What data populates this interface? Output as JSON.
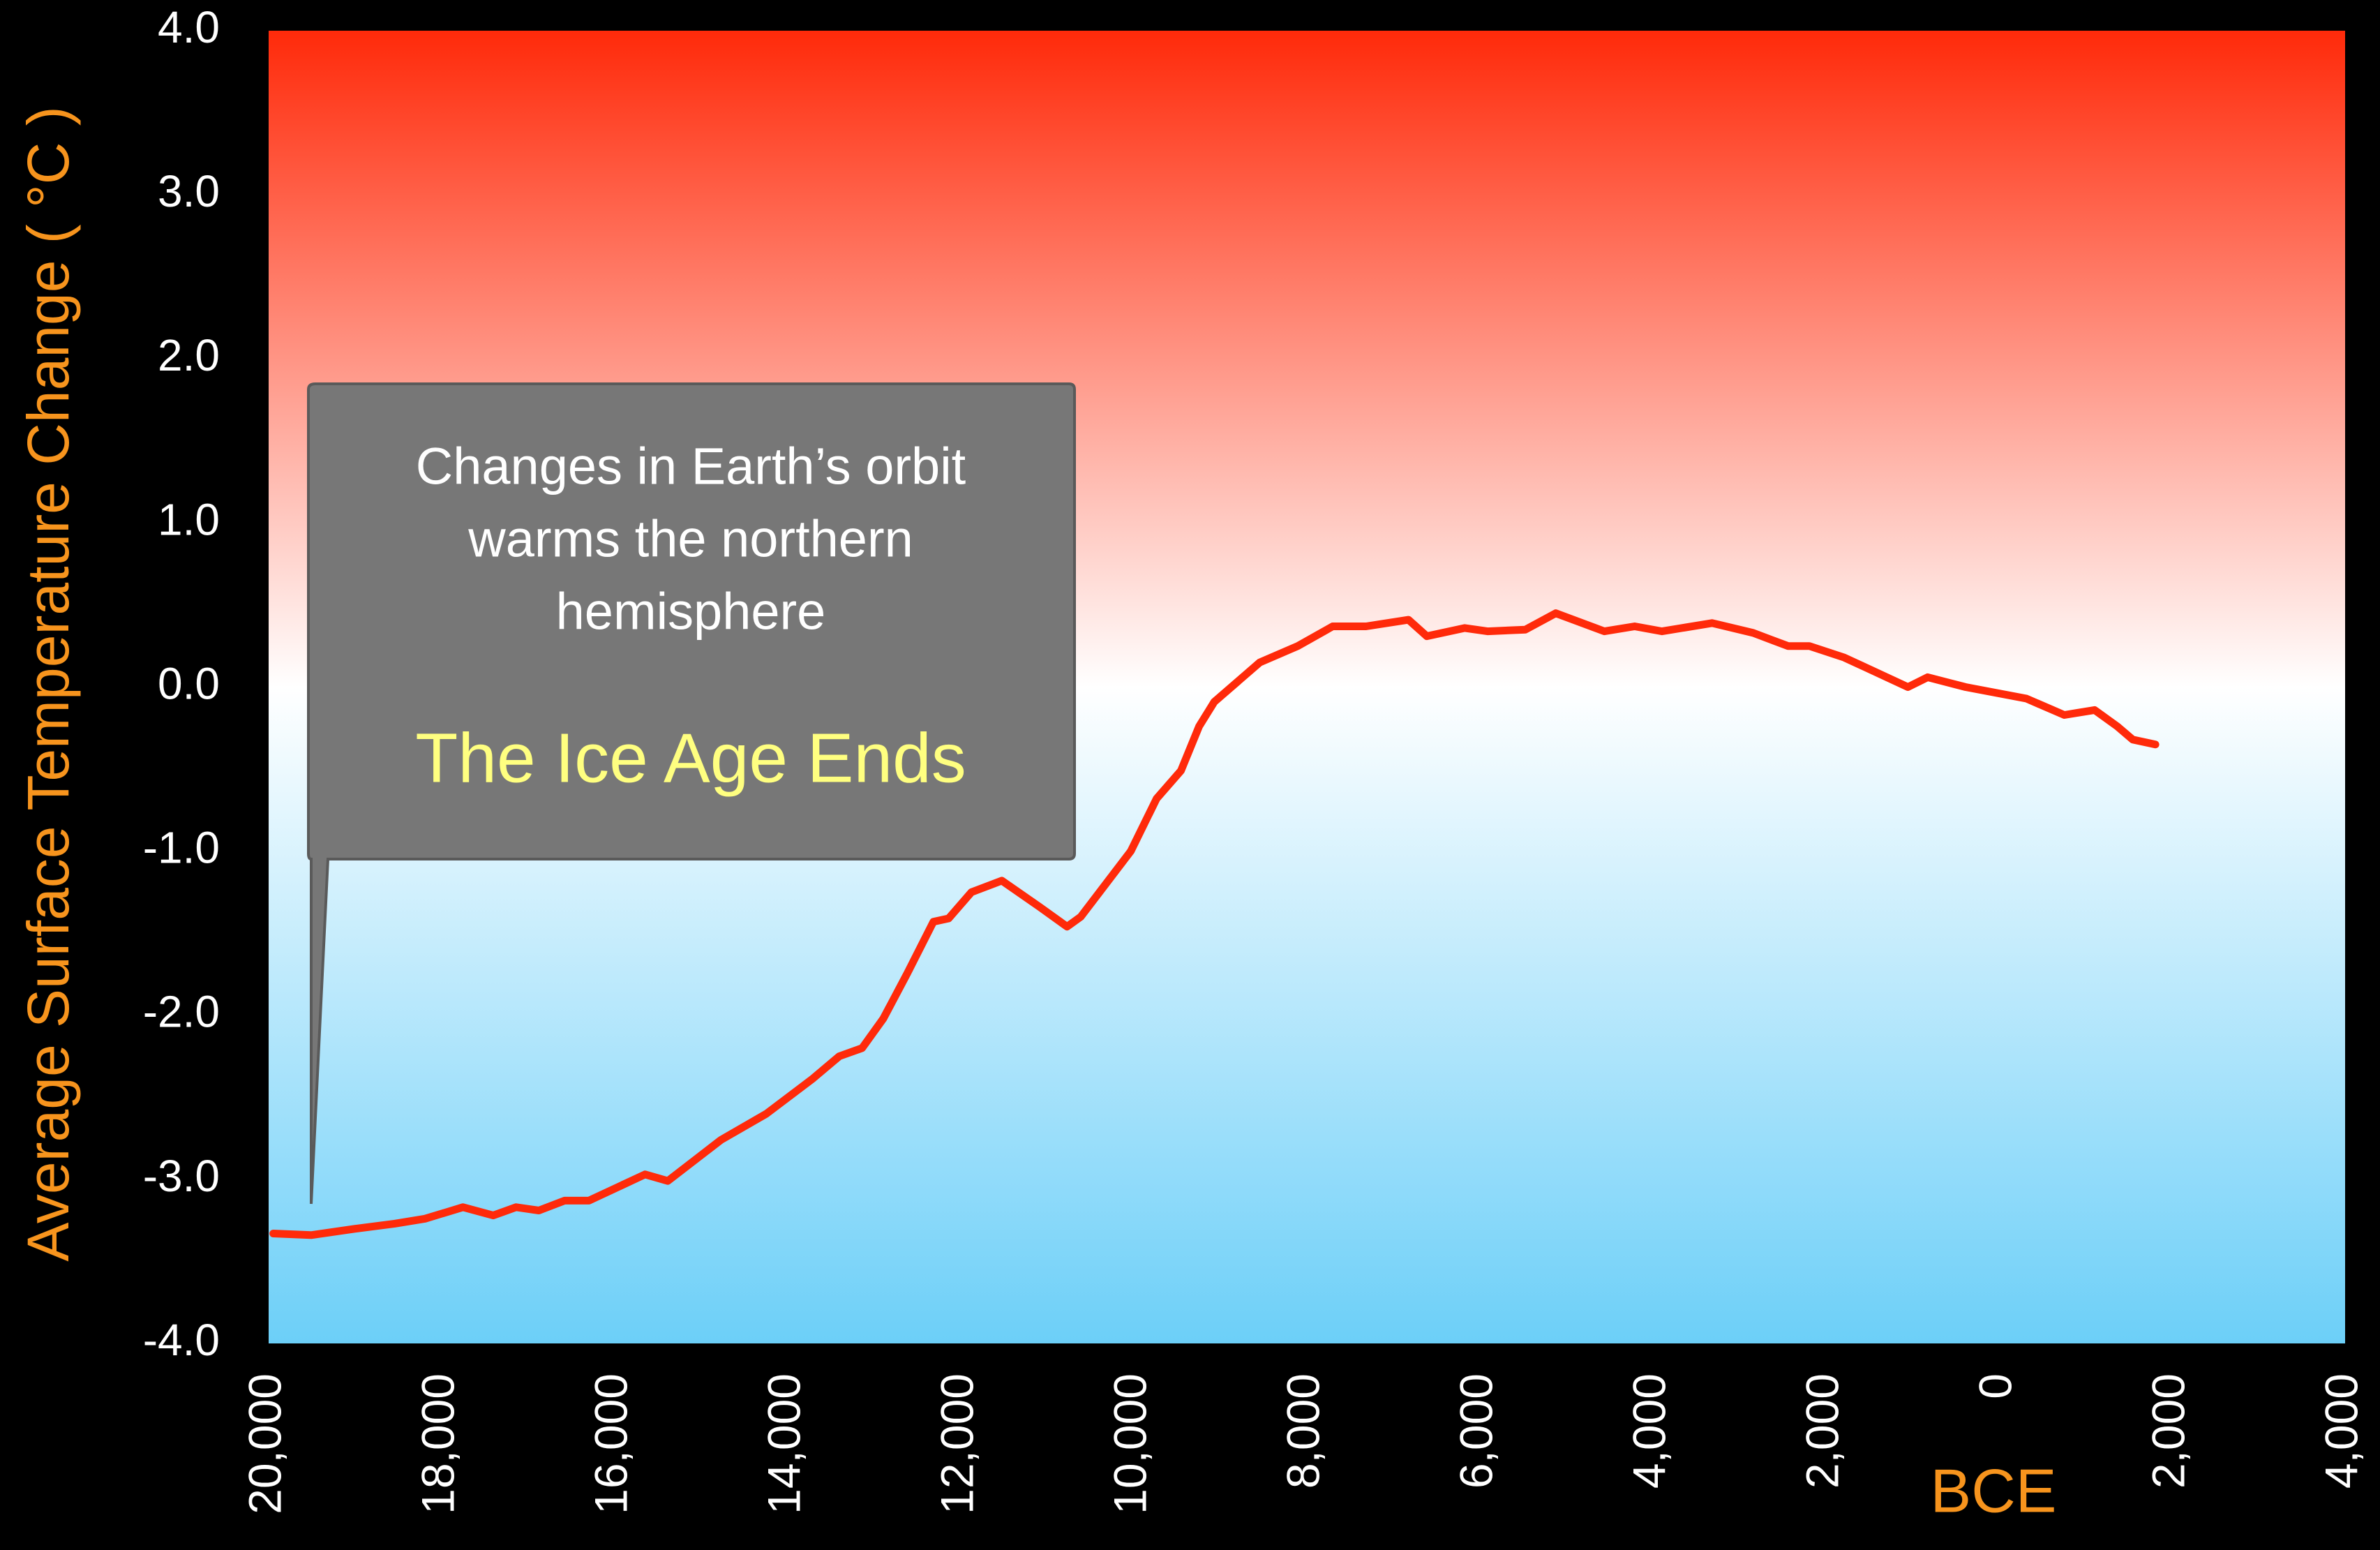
{
  "chart_data": {
    "type": "line",
    "ylabel": "Average Surface Temperature Change ( °C )",
    "xlabel": "BCE",
    "annotation": {
      "lines": [
        "Changes in Earth’s orbit",
        "warms the northern",
        "hemisphere"
      ],
      "headline": "The Ice Age Ends"
    },
    "xlim": [
      -20000,
      4000
    ],
    "ylim": [
      -4,
      4
    ],
    "xticks": [
      {
        "value": -20000,
        "label": "20,000"
      },
      {
        "value": -18000,
        "label": "18,000"
      },
      {
        "value": -16000,
        "label": "16,000"
      },
      {
        "value": -14000,
        "label": "14,000"
      },
      {
        "value": -12000,
        "label": "12,000"
      },
      {
        "value": -10000,
        "label": "10,000"
      },
      {
        "value": -8000,
        "label": "8,000"
      },
      {
        "value": -6000,
        "label": "6,000"
      },
      {
        "value": -4000,
        "label": "4,000"
      },
      {
        "value": -2000,
        "label": "2,000"
      },
      0,
      {
        "value": 2000,
        "label": "2,000"
      },
      {
        "value": 4000,
        "label": "4,000"
      }
    ],
    "yticks": [
      {
        "value": 4,
        "label": "4.0"
      },
      {
        "value": 3,
        "label": "3.0"
      },
      {
        "value": 2,
        "label": "2.0"
      },
      {
        "value": 1,
        "label": "1.0"
      },
      {
        "value": 0,
        "label": "0.0"
      },
      {
        "value": -1,
        "label": "-1.0"
      },
      {
        "value": -2,
        "label": "-2.0"
      },
      {
        "value": -3,
        "label": "-3.0"
      },
      {
        "value": -4,
        "label": "-4.0"
      }
    ],
    "color": "#ff2a0a",
    "x": [
      -19947,
      -19509,
      -18982,
      -18544,
      -18193,
      -17754,
      -17404,
      -17140,
      -16877,
      -16579,
      -16298,
      -15649,
      -15386,
      -14772,
      -14246,
      -13719,
      -13404,
      -13140,
      -12895,
      -12614,
      -12316,
      -12140,
      -11877,
      -11526,
      -11088,
      -10772,
      -10614,
      -10035,
      -9737,
      -9456,
      -9246,
      -9070,
      -8544,
      -8105,
      -7702,
      -7316,
      -6825,
      -6614,
      -6175,
      -5912,
      -5474,
      -5123,
      -4561,
      -4211,
      -3895,
      -3316,
      -2842,
      -2439,
      -2193,
      -1789,
      -1053,
      -825,
      -386,
      316,
      754,
      1105,
      1368,
      1544,
      1807
    ],
    "values": [
      -3.33,
      -3.34,
      -3.3,
      -3.27,
      -3.24,
      -3.17,
      -3.22,
      -3.17,
      -3.19,
      -3.13,
      -3.13,
      -2.97,
      -3.01,
      -2.76,
      -2.6,
      -2.39,
      -2.25,
      -2.2,
      -2.02,
      -1.74,
      -1.43,
      -1.41,
      -1.25,
      -1.18,
      -1.34,
      -1.46,
      -1.4,
      -1.0,
      -0.68,
      -0.51,
      -0.24,
      -0.09,
      0.15,
      0.25,
      0.37,
      0.37,
      0.41,
      0.31,
      0.36,
      0.34,
      0.35,
      0.45,
      0.34,
      0.37,
      0.34,
      0.39,
      0.33,
      0.25,
      0.25,
      0.18,
      0.0,
      0.06,
      0.0,
      -0.07,
      -0.17,
      -0.14,
      -0.24,
      -0.32,
      -0.35
    ]
  }
}
